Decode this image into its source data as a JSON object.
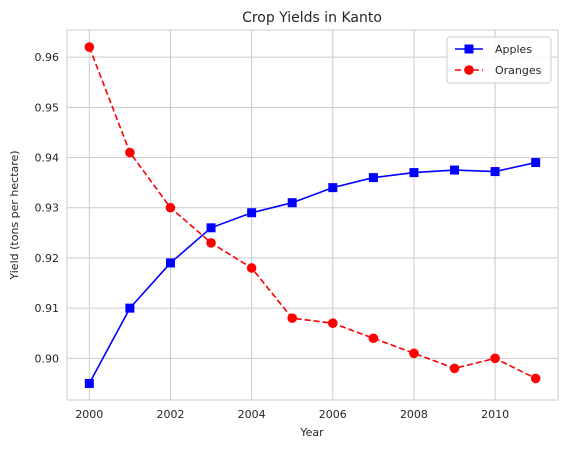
{
  "chart_data": {
    "type": "line",
    "title": "Crop Yields in Kanto",
    "xlabel": "Year",
    "ylabel": "Yield (tons per hectare)",
    "x": [
      2000,
      2001,
      2002,
      2003,
      2004,
      2005,
      2006,
      2007,
      2008,
      2009,
      2010,
      2011
    ],
    "xlim": [
      1999.45,
      2011.55
    ],
    "ylim": [
      0.8917,
      0.9654
    ],
    "x_ticks": [
      "2000",
      "2002",
      "2004",
      "2006",
      "2008",
      "2010"
    ],
    "y_ticks": [
      "0.90",
      "0.91",
      "0.92",
      "0.93",
      "0.94",
      "0.95",
      "0.96"
    ],
    "grid": true,
    "legend_position": "top-right",
    "series": [
      {
        "name": "Apples",
        "color": "#0000ff",
        "line_style": "solid",
        "marker": "square",
        "values": [
          0.895,
          0.91,
          0.919,
          0.926,
          0.929,
          0.931,
          0.934,
          0.936,
          0.937,
          0.9375,
          0.9372,
          0.939
        ]
      },
      {
        "name": "Oranges",
        "color": "#ff0000",
        "line_style": "dashed",
        "marker": "circle",
        "values": [
          0.962,
          0.941,
          0.93,
          0.923,
          0.918,
          0.908,
          0.907,
          0.904,
          0.901,
          0.898,
          0.9,
          0.896
        ]
      }
    ]
  }
}
